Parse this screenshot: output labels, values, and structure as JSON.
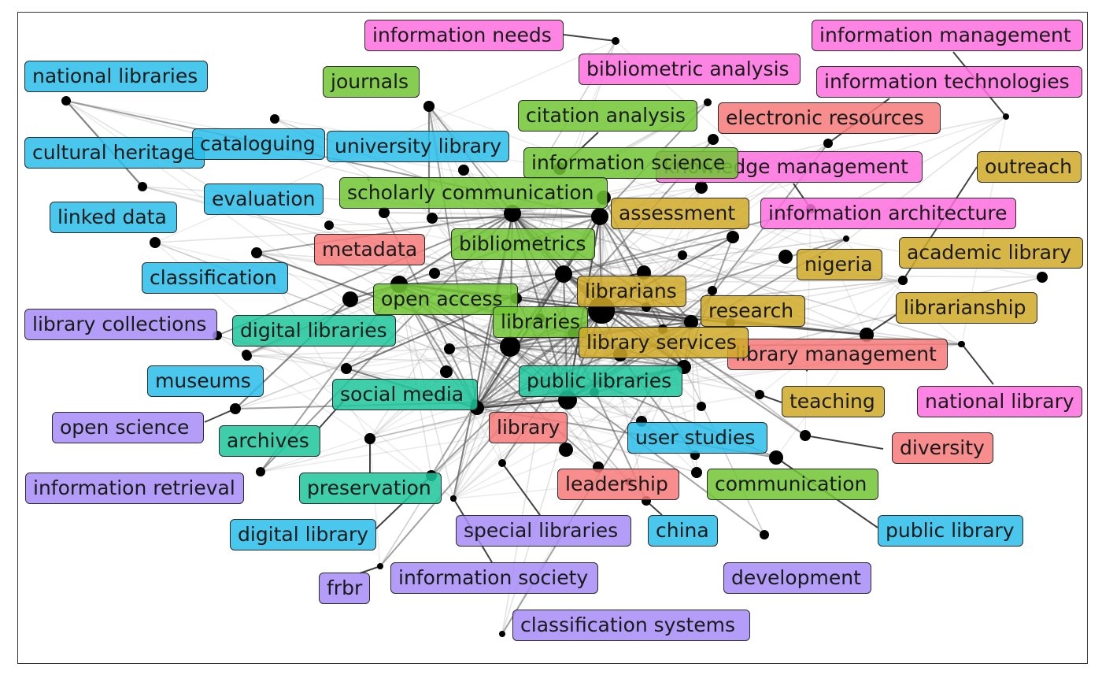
{
  "colors": {
    "cluster1": "#29bde9",
    "cluster2": "#71c533",
    "cluster3": "#f77979",
    "cluster4": "#d0a928",
    "cluster5": "#fd6fde",
    "cluster6": "#a68cf7",
    "cluster7": "#1cc59b"
  },
  "keywords": [
    {
      "id": "information-needs",
      "label": "information needs",
      "cluster": "cluster5"
    },
    {
      "id": "information-management",
      "label": "information management",
      "cluster": "cluster5"
    },
    {
      "id": "bibliometric-analysis",
      "label": "bibliometric analysis",
      "cluster": "cluster5"
    },
    {
      "id": "information-technologies",
      "label": "information technologies",
      "cluster": "cluster5"
    },
    {
      "id": "knowledge-management",
      "label": "knowledge management",
      "cluster": "cluster5"
    },
    {
      "id": "information-architecture",
      "label": "information architecture",
      "cluster": "cluster5"
    },
    {
      "id": "national-library",
      "label": "national library",
      "cluster": "cluster5"
    },
    {
      "id": "national-libraries",
      "label": "national libraries",
      "cluster": "cluster1"
    },
    {
      "id": "cultural-heritage",
      "label": "cultural heritage",
      "cluster": "cluster1"
    },
    {
      "id": "cataloguing",
      "label": "cataloguing",
      "cluster": "cluster1"
    },
    {
      "id": "university-library",
      "label": "university library",
      "cluster": "cluster1"
    },
    {
      "id": "evaluation",
      "label": "evaluation",
      "cluster": "cluster1"
    },
    {
      "id": "linked-data",
      "label": "linked data",
      "cluster": "cluster1"
    },
    {
      "id": "classification",
      "label": "classification",
      "cluster": "cluster1"
    },
    {
      "id": "museums",
      "label": "museums",
      "cluster": "cluster1"
    },
    {
      "id": "user-studies",
      "label": "user studies",
      "cluster": "cluster1"
    },
    {
      "id": "digital-library",
      "label": "digital library",
      "cluster": "cluster1"
    },
    {
      "id": "china",
      "label": "china",
      "cluster": "cluster1"
    },
    {
      "id": "public-library",
      "label": "public library",
      "cluster": "cluster1"
    },
    {
      "id": "journals",
      "label": "journals",
      "cluster": "cluster2"
    },
    {
      "id": "citation-analysis",
      "label": "citation analysis",
      "cluster": "cluster2"
    },
    {
      "id": "information-science",
      "label": "information science",
      "cluster": "cluster2"
    },
    {
      "id": "scholarly-communication",
      "label": "scholarly communication",
      "cluster": "cluster2"
    },
    {
      "id": "bibliometrics",
      "label": "bibliometrics",
      "cluster": "cluster2"
    },
    {
      "id": "open-access",
      "label": "open access",
      "cluster": "cluster2"
    },
    {
      "id": "libraries",
      "label": "libraries",
      "cluster": "cluster2"
    },
    {
      "id": "communication",
      "label": "communication",
      "cluster": "cluster2"
    },
    {
      "id": "electronic-resources",
      "label": "electronic resources",
      "cluster": "cluster3"
    },
    {
      "id": "metadata",
      "label": "metadata",
      "cluster": "cluster3"
    },
    {
      "id": "library-management",
      "label": "library management",
      "cluster": "cluster3"
    },
    {
      "id": "library",
      "label": "library",
      "cluster": "cluster3"
    },
    {
      "id": "leadership",
      "label": "leadership",
      "cluster": "cluster3"
    },
    {
      "id": "diversity",
      "label": "diversity",
      "cluster": "cluster3"
    },
    {
      "id": "outreach",
      "label": "outreach",
      "cluster": "cluster4"
    },
    {
      "id": "assessment",
      "label": "assessment",
      "cluster": "cluster4"
    },
    {
      "id": "nigeria",
      "label": "nigeria",
      "cluster": "cluster4"
    },
    {
      "id": "academic-library",
      "label": "academic library",
      "cluster": "cluster4"
    },
    {
      "id": "librarians",
      "label": "librarians",
      "cluster": "cluster4"
    },
    {
      "id": "research",
      "label": "research",
      "cluster": "cluster4"
    },
    {
      "id": "librarianship",
      "label": "librarianship",
      "cluster": "cluster4"
    },
    {
      "id": "library-services",
      "label": "library services",
      "cluster": "cluster4"
    },
    {
      "id": "teaching",
      "label": "teaching",
      "cluster": "cluster4"
    },
    {
      "id": "library-collections",
      "label": "library collections",
      "cluster": "cluster6"
    },
    {
      "id": "open-science",
      "label": "open science",
      "cluster": "cluster6"
    },
    {
      "id": "information-retrieval",
      "label": "information retrieval",
      "cluster": "cluster6"
    },
    {
      "id": "special-libraries",
      "label": "special libraries",
      "cluster": "cluster6"
    },
    {
      "id": "information-society",
      "label": "information society",
      "cluster": "cluster6"
    },
    {
      "id": "frbr",
      "label": "frbr",
      "cluster": "cluster6"
    },
    {
      "id": "development",
      "label": "development",
      "cluster": "cluster6"
    },
    {
      "id": "classification-systems",
      "label": "classification systems",
      "cluster": "cluster6"
    },
    {
      "id": "digital-libraries",
      "label": "digital libraries",
      "cluster": "cluster7"
    },
    {
      "id": "social-media",
      "label": "social media",
      "cluster": "cluster7"
    },
    {
      "id": "public-libraries",
      "label": "public libraries",
      "cluster": "cluster7"
    },
    {
      "id": "archives",
      "label": "archives",
      "cluster": "cluster7"
    },
    {
      "id": "preservation",
      "label": "preservation",
      "cluster": "cluster7"
    }
  ]
}
